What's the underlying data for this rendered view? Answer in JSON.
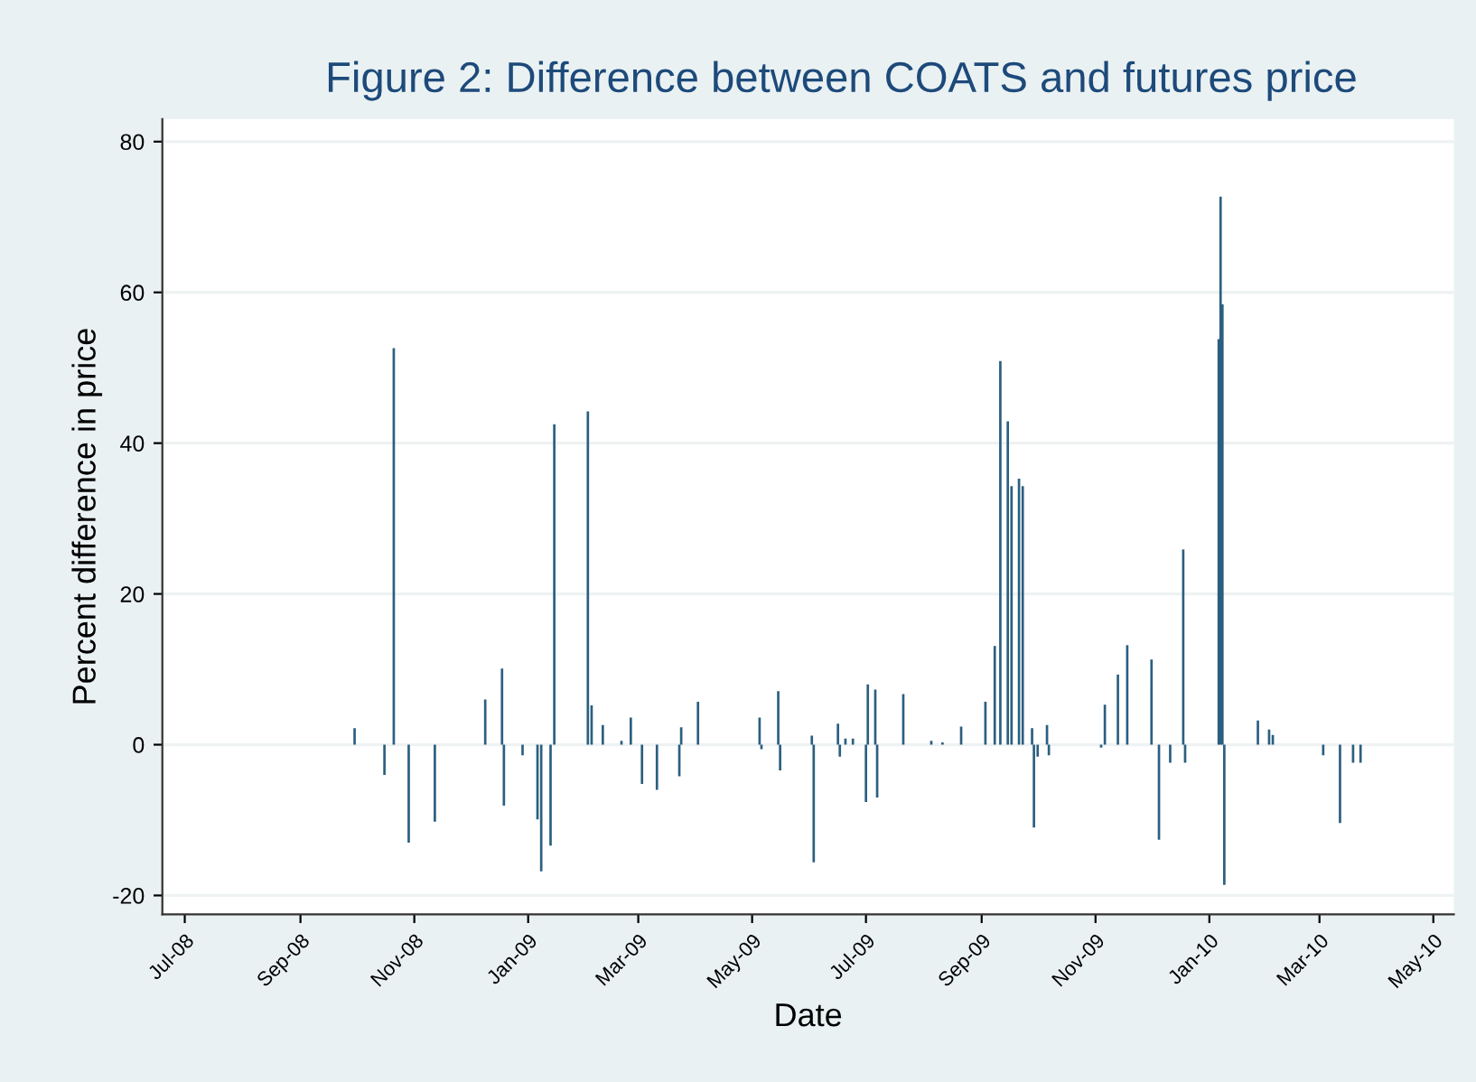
{
  "chart_data": {
    "type": "bar",
    "title": "Figure 2: Difference between COATS and futures price",
    "xlabel": "Date",
    "ylabel": "Percent difference in price",
    "x": [
      "2008-09-30",
      "2008-10-16",
      "2008-10-21",
      "2008-10-29",
      "2008-11-12",
      "2008-12-09",
      "2008-12-18",
      "2008-12-19",
      "2008-12-29",
      "2009-01-06",
      "2009-01-08",
      "2009-01-13",
      "2009-01-15",
      "2009-02-02",
      "2009-02-04",
      "2009-02-10",
      "2009-02-20",
      "2009-02-25",
      "2009-03-03",
      "2009-03-11",
      "2009-03-23",
      "2009-03-24",
      "2009-04-02",
      "2009-05-05",
      "2009-05-06",
      "2009-05-15",
      "2009-05-16",
      "2009-06-02",
      "2009-06-03",
      "2009-06-16",
      "2009-06-17",
      "2009-06-20",
      "2009-06-24",
      "2009-07-01",
      "2009-07-02",
      "2009-07-06",
      "2009-07-07",
      "2009-07-21",
      "2009-08-05",
      "2009-08-11",
      "2009-08-21",
      "2009-09-03",
      "2009-09-08",
      "2009-09-11",
      "2009-09-15",
      "2009-09-17",
      "2009-09-21",
      "2009-09-23",
      "2009-09-28",
      "2009-09-29",
      "2009-10-01",
      "2009-10-06",
      "2009-10-07",
      "2009-11-04",
      "2009-11-06",
      "2009-11-13",
      "2009-11-18",
      "2009-12-01",
      "2009-12-05",
      "2009-12-11",
      "2009-12-18",
      "2009-12-19",
      "2010-01-06",
      "2010-01-07",
      "2010-01-08",
      "2010-01-09",
      "2010-01-27",
      "2010-02-02",
      "2010-02-04",
      "2010-03-03",
      "2010-03-12",
      "2010-03-19",
      "2010-03-23"
    ],
    "values": [
      2.2,
      -4,
      52.6,
      -13,
      -10.2,
      6,
      10.1,
      -8.1,
      -1.4,
      -9.9,
      -16.8,
      -13.4,
      42.5,
      44.2,
      5.2,
      2.6,
      0.5,
      3.6,
      -5.2,
      -6,
      -4.2,
      2.3,
      5.7,
      3.6,
      -0.6,
      7.1,
      -3.4,
      1.2,
      -15.6,
      2.8,
      -1.6,
      0.8,
      0.8,
      -7.6,
      8,
      7.3,
      -7,
      6.7,
      0.5,
      0.3,
      2.4,
      5.7,
      13.1,
      50.9,
      42.9,
      34.3,
      35.3,
      34.3,
      2.2,
      -11,
      -1.6,
      2.6,
      -1.4,
      -0.4,
      5.3,
      9.3,
      13.2,
      11.3,
      -12.6,
      -2.4,
      25.9,
      -2.4,
      53.8,
      72.7,
      58.4,
      -18.6,
      3.2,
      2,
      1.3,
      -1.4,
      -10.4,
      -2.4,
      -2.4
    ],
    "color": "#2b5f80",
    "xlim": [
      "2008-06-19",
      "2010-05-12"
    ],
    "xticks": [
      {
        "value": "2008-07-01",
        "label": "Jul-08"
      },
      {
        "value": "2008-09-01",
        "label": "Sep-08"
      },
      {
        "value": "2008-11-01",
        "label": "Nov-08"
      },
      {
        "value": "2009-01-01",
        "label": "Jan-09"
      },
      {
        "value": "2009-03-01",
        "label": "Mar-09"
      },
      {
        "value": "2009-05-01",
        "label": "May-09"
      },
      {
        "value": "2009-07-01",
        "label": "Jul-09"
      },
      {
        "value": "2009-09-01",
        "label": "Sep-09"
      },
      {
        "value": "2009-11-01",
        "label": "Nov-09"
      },
      {
        "value": "2010-01-01",
        "label": "Jan-10"
      },
      {
        "value": "2010-03-01",
        "label": "Mar-10"
      },
      {
        "value": "2010-05-01",
        "label": "May-10"
      }
    ],
    "ylim": [
      -22.5,
      83
    ],
    "yticks": [
      -20,
      0,
      20,
      40,
      60,
      80
    ],
    "grid": "y"
  }
}
